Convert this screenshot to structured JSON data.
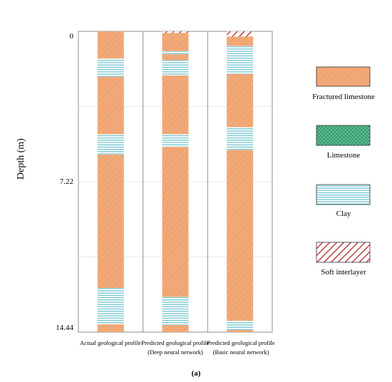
{
  "chart_data": {
    "type": "geological-profile",
    "ylabel": "Depth (m)",
    "yticks": [
      "0",
      "7.22",
      "14.44"
    ],
    "ylim": [
      0,
      14.44
    ],
    "grid": true,
    "legend_position": "right",
    "caption": "(a)",
    "legend": [
      {
        "key": "fractured",
        "label": "Fractured limestone"
      },
      {
        "key": "limestone",
        "label": "Limestone"
      },
      {
        "key": "clay",
        "label": "Clay"
      },
      {
        "key": "soft",
        "label": "Soft interlayer"
      }
    ],
    "columns": [
      {
        "label_lines": [
          "Actual geological profile"
        ],
        "layers": [
          {
            "top": 0.0,
            "bottom": 1.31,
            "lith": "fractured"
          },
          {
            "top": 1.31,
            "bottom": 2.18,
            "lith": "clay"
          },
          {
            "top": 2.18,
            "bottom": 4.94,
            "lith": "fractured"
          },
          {
            "top": 4.94,
            "bottom": 5.92,
            "lith": "clay"
          },
          {
            "top": 5.92,
            "bottom": 12.32,
            "lith": "fractured"
          },
          {
            "top": 12.32,
            "bottom": 14.07,
            "lith": "clay"
          },
          {
            "top": 14.07,
            "bottom": 14.44,
            "lith": "fractured"
          }
        ]
      },
      {
        "label_lines": [
          "Predicted geological profile",
          "(Deep neural network)"
        ],
        "layers": [
          {
            "top": 0.0,
            "bottom": 0.08,
            "lith": "soft"
          },
          {
            "top": 0.08,
            "bottom": 0.95,
            "lith": "fractured"
          },
          {
            "top": 0.95,
            "bottom": 1.1,
            "lith": "clay"
          },
          {
            "top": 1.1,
            "bottom": 1.38,
            "lith": "fractured"
          },
          {
            "top": 1.38,
            "bottom": 2.12,
            "lith": "clay"
          },
          {
            "top": 2.12,
            "bottom": 4.94,
            "lith": "fractured"
          },
          {
            "top": 4.94,
            "bottom": 5.55,
            "lith": "clay"
          },
          {
            "top": 5.55,
            "bottom": 12.75,
            "lith": "fractured"
          },
          {
            "top": 12.75,
            "bottom": 14.1,
            "lith": "clay"
          },
          {
            "top": 14.1,
            "bottom": 14.44,
            "lith": "fractured"
          }
        ]
      },
      {
        "label_lines": [
          "Predicted geological profile",
          "(Basic neural network)"
        ],
        "layers": [
          {
            "top": 0.0,
            "bottom": 0.25,
            "lith": "soft"
          },
          {
            "top": 0.25,
            "bottom": 0.7,
            "lith": "fractured"
          },
          {
            "top": 0.7,
            "bottom": 2.05,
            "lith": "clay"
          },
          {
            "top": 2.05,
            "bottom": 4.6,
            "lith": "fractured"
          },
          {
            "top": 4.6,
            "bottom": 5.7,
            "lith": "clay"
          },
          {
            "top": 5.7,
            "bottom": 13.9,
            "lith": "fractured"
          },
          {
            "top": 13.9,
            "bottom": 14.34,
            "lith": "clay"
          },
          {
            "top": 14.34,
            "bottom": 14.44,
            "lith": "fractured"
          }
        ]
      }
    ]
  }
}
